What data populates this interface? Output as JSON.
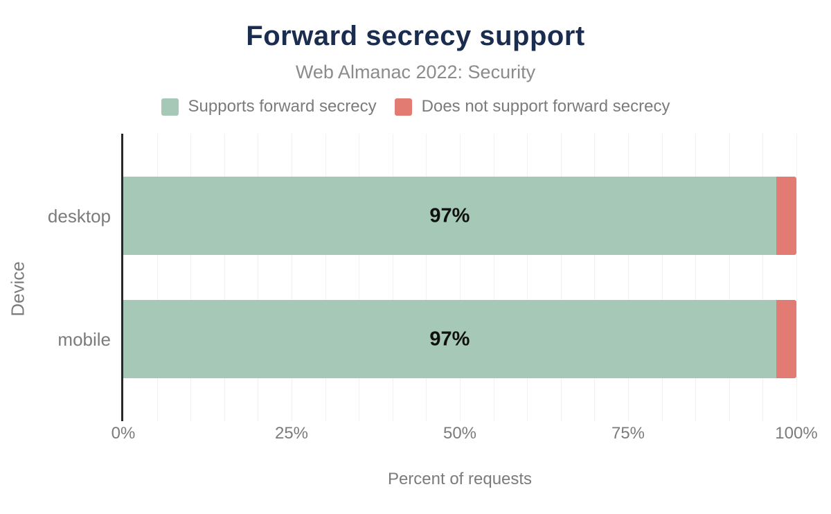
{
  "chart_data": {
    "type": "bar",
    "orientation": "horizontal",
    "stacked": true,
    "title": "Forward secrecy support",
    "subtitle": "Web Almanac 2022: Security",
    "categories": [
      "desktop",
      "mobile"
    ],
    "series": [
      {
        "name": "Supports forward secrecy",
        "color": "#a5c8b7",
        "values": [
          97,
          97
        ]
      },
      {
        "name": "Does not support forward secrecy",
        "color": "#e27b72",
        "values": [
          3,
          3
        ]
      }
    ],
    "bar_labels": [
      "97%",
      "97%"
    ],
    "xlabel": "Percent of requests",
    "ylabel": "Device",
    "xlim": [
      0,
      100
    ],
    "x_ticks": [
      "0%",
      "25%",
      "50%",
      "75%",
      "100%"
    ],
    "x_tick_values": [
      0,
      25,
      50,
      75,
      100
    ],
    "grid": {
      "axis": "x",
      "interval_percent": 5,
      "color": "#f1f1f1"
    },
    "legend_position": "top"
  },
  "colors": {
    "title": "#1b2d4f",
    "subtitle": "#8b8b8b",
    "axis_text": "#7b7b7b",
    "axis_line": "#26282b",
    "bar_label": "#101010",
    "background": "#ffffff"
  }
}
